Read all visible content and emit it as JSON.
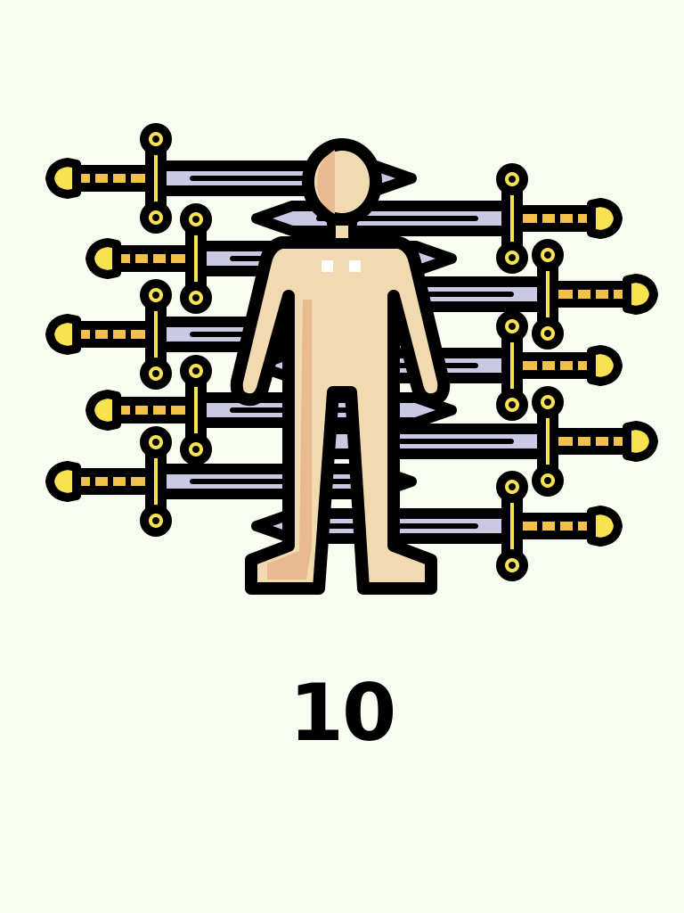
{
  "scene": {
    "subject": "person-figure",
    "items": "swords",
    "sword_count": 10,
    "counter_value": "10"
  },
  "colors": {
    "background": "#f8fdf1",
    "outline": "#000000",
    "blade": "#c9c9e4",
    "blade_shade": "#a5a5cf",
    "gold": "#f9e24f",
    "gold_dark": "#f2c14a",
    "skin": "#f1dab0",
    "skin_shade": "#e9b98f",
    "chest_marks": "#ffffff"
  },
  "swords": [
    {
      "dir": "right",
      "level": 200
    },
    {
      "dir": "right",
      "level": 290
    },
    {
      "dir": "right",
      "level": 375
    },
    {
      "dir": "right",
      "level": 460
    },
    {
      "dir": "right",
      "level": 540
    },
    {
      "dir": "left",
      "level": 245
    },
    {
      "dir": "left",
      "level": 330
    },
    {
      "dir": "left",
      "level": 410
    },
    {
      "dir": "left",
      "level": 495
    },
    {
      "dir": "left",
      "level": 590
    }
  ]
}
